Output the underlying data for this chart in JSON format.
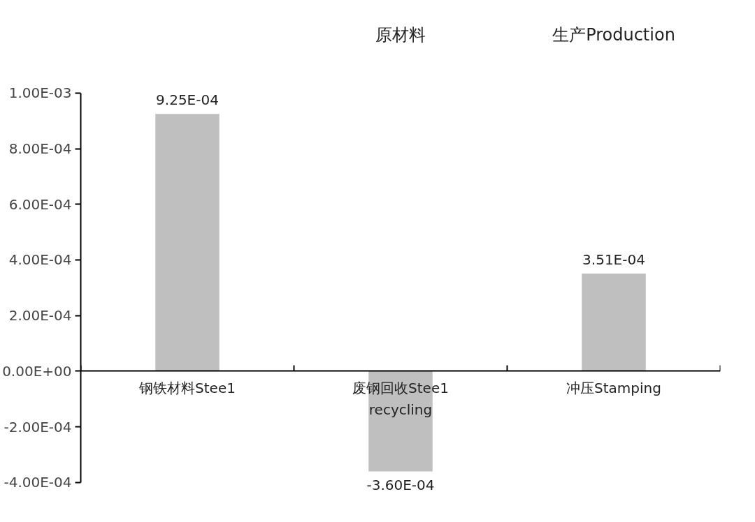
{
  "chart_data": {
    "type": "bar",
    "categories": [
      "钢铁材料Stee1",
      "废钢回收Stee1\nrecycling",
      "冲压Stamping"
    ],
    "values": [
      0.000925,
      -0.00036,
      0.000351
    ],
    "value_labels": [
      "9.25E-04",
      "-3.60E-04",
      "3.51E-04"
    ],
    "color": "#bfbfbf",
    "ylim": [
      -0.0004,
      0.001
    ],
    "yticks": [
      {
        "value": -0.0004,
        "label": "-4.00E-04"
      },
      {
        "value": -0.0002,
        "label": "-2.00E-04"
      },
      {
        "value": 0,
        "label": "0.00E+00"
      },
      {
        "value": 0.0002,
        "label": "2.00E-04"
      },
      {
        "value": 0.0004,
        "label": "4.00E-04"
      },
      {
        "value": 0.0006,
        "label": "6.00E-04"
      },
      {
        "value": 0.0008,
        "label": "8.00E-04"
      },
      {
        "value": 0.001,
        "label": "1.00E-03"
      }
    ],
    "annotations": [
      "原材料",
      "生产Production"
    ],
    "grid": false
  }
}
